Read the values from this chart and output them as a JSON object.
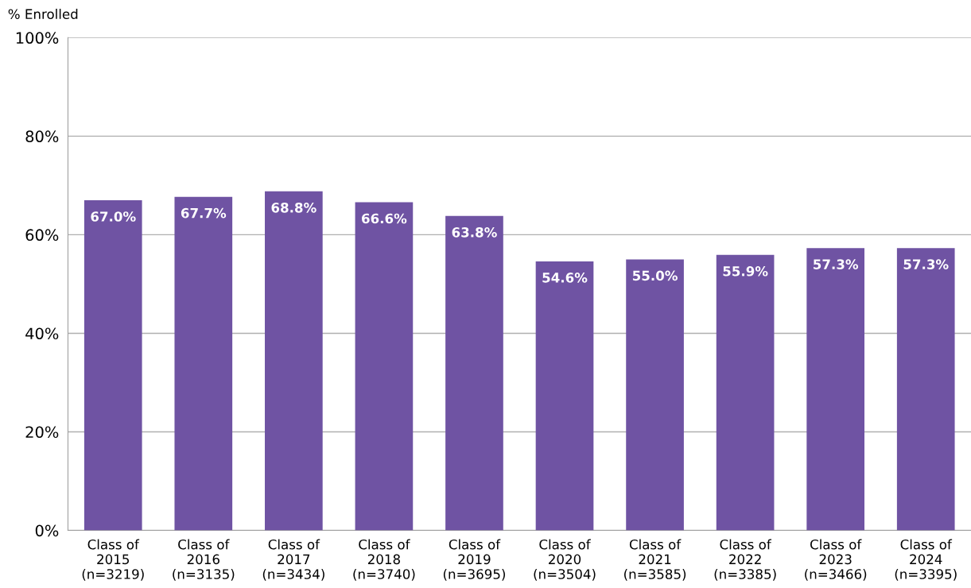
{
  "chart_data": {
    "type": "bar",
    "ylabel": "% Enrolled",
    "categories": [
      "Class of\n2015\n(n=3219)",
      "Class of\n2016\n(n=3135)",
      "Class of\n2017\n(n=3434)",
      "Class of\n2018\n(n=3740)",
      "Class of\n2019\n(n=3695)",
      "Class of\n2020\n(n=3504)",
      "Class of\n2021\n(n=3585)",
      "Class of\n2022\n(n=3385)",
      "Class of\n2023\n(n=3466)",
      "Class of\n2024\n(n=3395)"
    ],
    "values": [
      67.0,
      67.7,
      68.8,
      66.6,
      63.8,
      54.6,
      55.0,
      55.9,
      57.3,
      57.3
    ],
    "value_labels": [
      "67.0%",
      "67.7%",
      "68.8%",
      "66.6%",
      "63.8%",
      "54.6%",
      "55.0%",
      "55.9%",
      "57.3%",
      "57.3%"
    ],
    "color": "#6f53a3",
    "ylim": [
      0,
      100
    ],
    "yticks": [
      {
        "value": 0,
        "label": "0%"
      },
      {
        "value": 20,
        "label": "20%"
      },
      {
        "value": 40,
        "label": "40%"
      },
      {
        "value": 60,
        "label": "60%"
      },
      {
        "value": 80,
        "label": "80%"
      },
      {
        "value": 100,
        "label": "100%"
      }
    ],
    "grid": "y",
    "legend": false
  }
}
